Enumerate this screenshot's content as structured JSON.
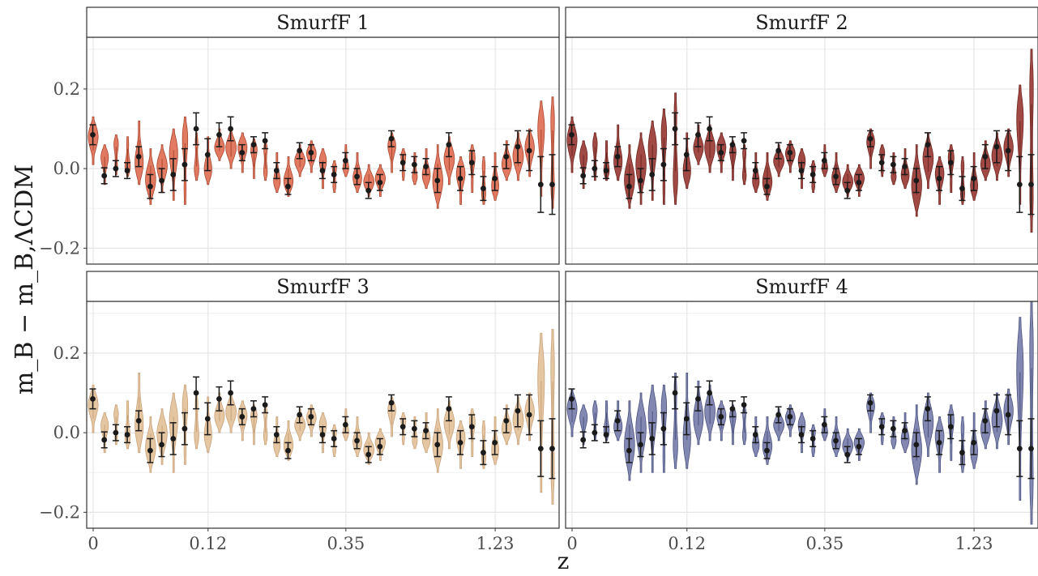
{
  "chart_data": {
    "type": "violin",
    "xlabel": "z",
    "ylabel": "m_B − m_B,ΛCDM",
    "ylim": [
      -0.24,
      0.33
    ],
    "yticks": [
      -0.2,
      0.0,
      0.2
    ],
    "ytick_labels": [
      "−0.2",
      "0.0",
      "0.2"
    ],
    "xticks": [
      0,
      0.12,
      0.35,
      1.23
    ],
    "xtick_labels": [
      "0",
      "0.12",
      "0.35",
      "1.23"
    ],
    "grid": true,
    "legend": "none",
    "binned_points": {
      "description_free": true,
      "z_index": [
        0,
        1,
        2,
        3,
        4,
        5,
        6,
        7,
        8,
        9,
        10,
        11,
        12,
        13,
        14,
        15,
        16,
        17,
        18,
        19,
        20,
        21,
        22,
        23,
        24,
        25,
        26,
        27,
        28,
        29,
        30,
        31,
        32,
        33,
        34,
        35,
        36,
        37,
        38,
        39,
        40
      ],
      "mean": [
        0.085,
        -0.018,
        0.0,
        -0.005,
        0.03,
        -0.045,
        -0.03,
        -0.015,
        0.01,
        0.1,
        0.035,
        0.085,
        0.1,
        0.04,
        0.06,
        0.07,
        -0.005,
        -0.045,
        0.045,
        0.04,
        -0.005,
        -0.015,
        0.02,
        -0.02,
        -0.055,
        -0.035,
        0.075,
        0.015,
        0.01,
        0.005,
        -0.03,
        0.06,
        -0.025,
        0.015,
        -0.05,
        -0.025,
        0.03,
        0.055,
        0.045,
        -0.04,
        -0.04
      ],
      "error": [
        0.025,
        0.02,
        0.02,
        0.02,
        0.025,
        0.03,
        0.03,
        0.04,
        0.04,
        0.04,
        0.04,
        0.03,
        0.03,
        0.02,
        0.02,
        0.02,
        0.02,
        0.02,
        0.02,
        0.02,
        0.02,
        0.02,
        0.02,
        0.02,
        0.02,
        0.02,
        0.02,
        0.02,
        0.02,
        0.02,
        0.03,
        0.03,
        0.03,
        0.03,
        0.03,
        0.03,
        0.03,
        0.04,
        0.05,
        0.07,
        0.075
      ]
    },
    "panels": [
      {
        "name": "SmurfF 1",
        "color": "#e0735a",
        "stroke": "#a8462f",
        "violin_center": [
          0.07,
          0.01,
          0.035,
          0.03,
          0.04,
          -0.02,
          0.0,
          0.01,
          0.02,
          0.03,
          0.02,
          0.06,
          0.05,
          0.04,
          0.025,
          0.02,
          -0.01,
          -0.02,
          0.02,
          0.03,
          0.0,
          -0.02,
          0.02,
          -0.01,
          -0.03,
          -0.03,
          0.04,
          0.01,
          0.0,
          0.0,
          -0.02,
          0.02,
          -0.03,
          0.0,
          -0.03,
          -0.02,
          0.02,
          0.03,
          0.04,
          0.05,
          0.04
        ],
        "violin_half_range": [
          0.06,
          0.05,
          0.05,
          0.05,
          0.08,
          0.07,
          0.06,
          0.09,
          0.11,
          0.06,
          0.06,
          0.04,
          0.05,
          0.05,
          0.05,
          0.05,
          0.05,
          0.05,
          0.04,
          0.04,
          0.05,
          0.04,
          0.04,
          0.05,
          0.04,
          0.04,
          0.05,
          0.04,
          0.04,
          0.05,
          0.08,
          0.06,
          0.06,
          0.06,
          0.06,
          0.06,
          0.05,
          0.06,
          0.06,
          0.12,
          0.14
        ]
      },
      {
        "name": "SmurfF 2",
        "color": "#9c3f3a",
        "stroke": "#6e2621",
        "violin_center": [
          0.06,
          0.01,
          0.03,
          0.02,
          0.04,
          -0.02,
          0.0,
          0.02,
          0.03,
          0.05,
          0.02,
          0.06,
          0.05,
          0.04,
          0.02,
          0.01,
          -0.01,
          -0.02,
          0.02,
          0.03,
          0.0,
          -0.02,
          0.02,
          -0.01,
          -0.03,
          -0.03,
          0.05,
          0.02,
          0.0,
          0.0,
          -0.03,
          0.02,
          -0.03,
          0.0,
          -0.03,
          -0.02,
          0.02,
          0.03,
          0.04,
          0.06,
          0.07
        ],
        "violin_half_range": [
          0.07,
          0.06,
          0.06,
          0.05,
          0.07,
          0.08,
          0.09,
          0.1,
          0.12,
          0.14,
          0.07,
          0.05,
          0.06,
          0.05,
          0.05,
          0.05,
          0.05,
          0.06,
          0.04,
          0.04,
          0.05,
          0.04,
          0.04,
          0.05,
          0.04,
          0.04,
          0.05,
          0.04,
          0.04,
          0.05,
          0.09,
          0.07,
          0.06,
          0.06,
          0.06,
          0.06,
          0.05,
          0.06,
          0.06,
          0.15,
          0.23
        ]
      },
      {
        "name": "SmurfF 3",
        "color": "#e3c39d",
        "stroke": "#c9a27a",
        "violin_center": [
          0.06,
          0.0,
          0.02,
          0.02,
          0.05,
          -0.03,
          -0.01,
          0.0,
          0.02,
          0.03,
          0.02,
          0.05,
          0.05,
          0.03,
          0.02,
          0.02,
          -0.01,
          -0.02,
          0.02,
          0.03,
          0.0,
          -0.02,
          0.02,
          -0.01,
          -0.04,
          -0.03,
          0.04,
          0.01,
          0.0,
          0.0,
          -0.02,
          0.02,
          -0.03,
          0.0,
          -0.03,
          -0.02,
          0.02,
          0.03,
          0.04,
          0.05,
          0.04
        ],
        "violin_half_range": [
          0.06,
          0.05,
          0.05,
          0.06,
          0.1,
          0.07,
          0.07,
          0.1,
          0.1,
          0.07,
          0.07,
          0.05,
          0.05,
          0.05,
          0.05,
          0.05,
          0.05,
          0.05,
          0.04,
          0.04,
          0.05,
          0.04,
          0.04,
          0.05,
          0.04,
          0.04,
          0.05,
          0.04,
          0.04,
          0.05,
          0.08,
          0.06,
          0.06,
          0.06,
          0.06,
          0.06,
          0.05,
          0.06,
          0.06,
          0.2,
          0.22
        ]
      },
      {
        "name": "SmurfF 4",
        "color": "#7b82ad",
        "stroke": "#4d5380",
        "violin_center": [
          0.05,
          0.02,
          0.03,
          0.03,
          0.03,
          -0.02,
          0.0,
          0.01,
          0.01,
          0.03,
          0.03,
          0.05,
          0.05,
          0.03,
          0.02,
          0.02,
          -0.01,
          -0.02,
          0.02,
          0.03,
          0.0,
          -0.02,
          0.02,
          -0.01,
          -0.03,
          -0.03,
          0.05,
          0.01,
          0.0,
          0.0,
          -0.03,
          0.02,
          -0.03,
          0.0,
          -0.03,
          -0.02,
          0.02,
          0.03,
          0.04,
          0.06,
          0.05
        ],
        "violin_half_range": [
          0.06,
          0.05,
          0.05,
          0.05,
          0.05,
          0.1,
          0.1,
          0.11,
          0.11,
          0.12,
          0.12,
          0.08,
          0.07,
          0.05,
          0.05,
          0.05,
          0.05,
          0.06,
          0.04,
          0.04,
          0.05,
          0.04,
          0.04,
          0.05,
          0.04,
          0.04,
          0.05,
          0.04,
          0.04,
          0.05,
          0.1,
          0.08,
          0.07,
          0.07,
          0.07,
          0.07,
          0.06,
          0.07,
          0.07,
          0.23,
          0.28
        ]
      }
    ]
  }
}
